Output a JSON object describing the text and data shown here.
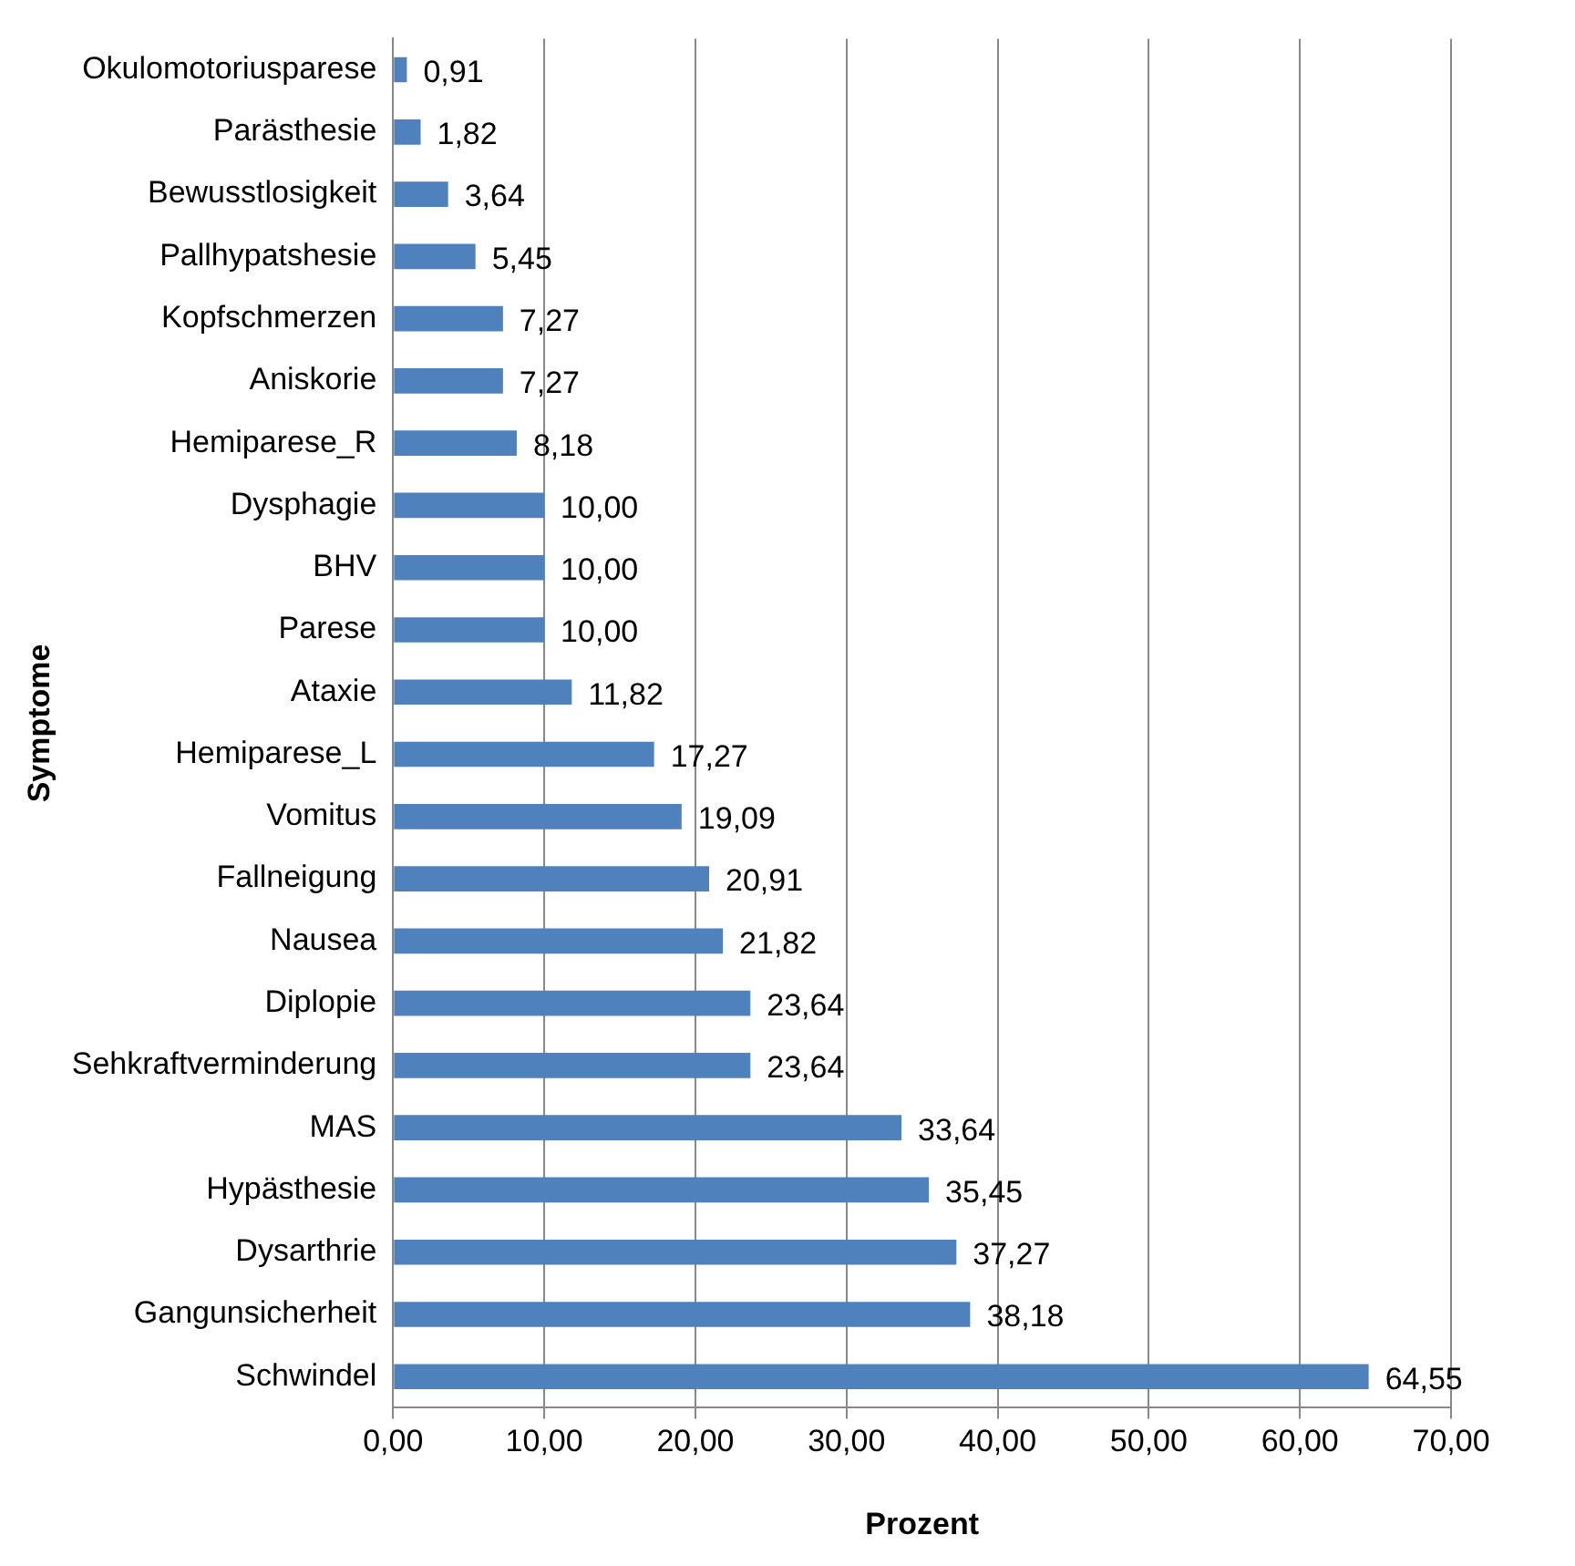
{
  "chart_data": {
    "type": "bar",
    "orientation": "horizontal",
    "xlabel": "Prozent",
    "ylabel": "Symptome",
    "categories": [
      "Okulomotoriusparese",
      "Parästhesie",
      "Bewusstlosigkeit",
      "Pallhypatshesie",
      "Kopfschmerzen",
      "Aniskorie",
      "Hemiparese_R",
      "Dysphagie",
      "BHV",
      "Parese",
      "Ataxie",
      "Hemiparese_L",
      "Vomitus",
      "Fallneigung",
      "Nausea",
      "Diplopie",
      "Sehkraftverminderung",
      "MAS",
      "Hypästhesie",
      "Dysarthrie",
      "Gangunsicherheit",
      "Schwindel"
    ],
    "values": [
      0.91,
      1.82,
      3.64,
      5.45,
      7.27,
      7.27,
      8.18,
      10.0,
      10.0,
      10.0,
      11.82,
      17.27,
      19.09,
      20.91,
      21.82,
      23.64,
      23.64,
      33.64,
      35.45,
      37.27,
      38.18,
      64.55
    ],
    "value_labels": [
      "0,91",
      "1,82",
      "3,64",
      "5,45",
      "7,27",
      "7,27",
      "8,18",
      "10,00",
      "10,00",
      "10,00",
      "11,82",
      "17,27",
      "19,09",
      "20,91",
      "21,82",
      "23,64",
      "23,64",
      "33,64",
      "35,45",
      "37,27",
      "38,18",
      "64,55"
    ],
    "color": "#4f81bd",
    "xlim": [
      0,
      70
    ],
    "xticks": [
      {
        "value": 0,
        "label": "0,00"
      },
      {
        "value": 10,
        "label": "10,00"
      },
      {
        "value": 20,
        "label": "20,00"
      },
      {
        "value": 30,
        "label": "30,00"
      },
      {
        "value": 40,
        "label": "40,00"
      },
      {
        "value": 50,
        "label": "50,00"
      },
      {
        "value": 60,
        "label": "60,00"
      },
      {
        "value": 70,
        "label": "70,00"
      }
    ],
    "grid": "x",
    "legend": false
  }
}
